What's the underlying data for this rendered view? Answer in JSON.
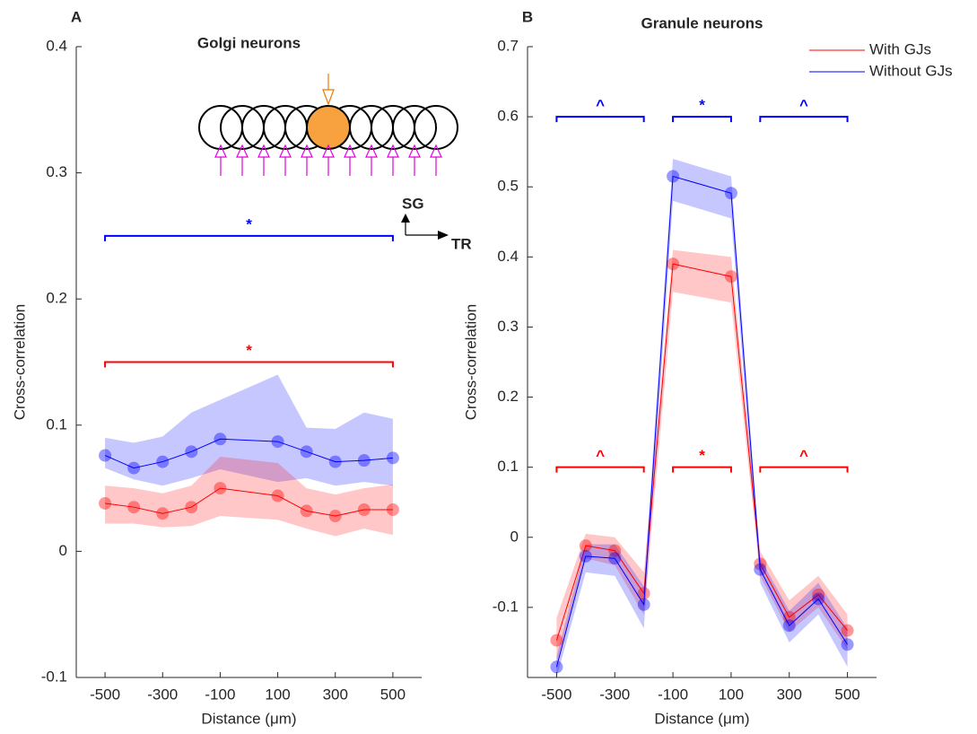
{
  "chart_data": [
    {
      "type": "line",
      "panel": "A",
      "title": "Golgi neurons",
      "xlabel": "Distance (μm)",
      "ylabel": "Cross-correlation",
      "x": [
        -500,
        -400,
        -300,
        -200,
        -100,
        100,
        200,
        300,
        400,
        500
      ],
      "xlim": [
        -600,
        600
      ],
      "xticks": [
        -500,
        -300,
        -100,
        100,
        300,
        500
      ],
      "ylim": [
        -0.1,
        0.4
      ],
      "yticks": [
        -0.1,
        0,
        0.1,
        0.2,
        0.3,
        0.4
      ],
      "series": [
        {
          "color": "#0000ff",
          "values": [
            0.076,
            0.066,
            0.071,
            0.079,
            0.089,
            0.087,
            0.079,
            0.071,
            0.072,
            0.074
          ],
          "lower": [
            0.066,
            0.057,
            0.052,
            0.058,
            0.065,
            0.055,
            0.058,
            0.052,
            0.055,
            0.052
          ],
          "upper": [
            0.09,
            0.086,
            0.091,
            0.11,
            0.12,
            0.14,
            0.098,
            0.097,
            0.11,
            0.105
          ]
        },
        {
          "color": "#ff0000",
          "values": [
            0.038,
            0.035,
            0.03,
            0.035,
            0.05,
            0.044,
            0.032,
            0.028,
            0.033,
            0.033
          ],
          "lower": [
            0.022,
            0.022,
            0.019,
            0.02,
            0.028,
            0.025,
            0.018,
            0.012,
            0.018,
            0.013
          ],
          "upper": [
            0.052,
            0.05,
            0.046,
            0.052,
            0.075,
            0.07,
            0.05,
            0.045,
            0.05,
            0.053
          ]
        }
      ],
      "significance": [
        {
          "y": 0.25,
          "x": [
            -500,
            500
          ],
          "label": "*",
          "color": "#0000ff"
        },
        {
          "y": 0.15,
          "x": [
            -500,
            500
          ],
          "label": "*",
          "color": "#ff0000"
        }
      ],
      "inset_labels": [
        "SG",
        "TR"
      ]
    },
    {
      "type": "line",
      "panel": "B",
      "title": "Granule neurons",
      "xlabel": "Distance (μm)",
      "ylabel": "Cross-correlation",
      "x": [
        -500,
        -400,
        -300,
        -200,
        -100,
        100,
        200,
        300,
        400,
        500
      ],
      "xlim": [
        -600,
        600
      ],
      "xticks": [
        -500,
        -300,
        -100,
        100,
        300,
        500
      ],
      "ylim": [
        -0.2,
        0.7
      ],
      "yticks": [
        -0.1,
        0,
        0.1,
        0.2,
        0.3,
        0.4,
        0.5,
        0.6,
        0.7
      ],
      "legend": "upper right",
      "series": [
        {
          "name": "With GJs",
          "color": "#ff0000",
          "values": [
            -0.147,
            -0.012,
            -0.019,
            -0.08,
            0.39,
            0.372,
            -0.038,
            -0.114,
            -0.082,
            -0.133
          ],
          "lower": [
            -0.18,
            -0.03,
            -0.04,
            -0.11,
            0.35,
            0.335,
            -0.055,
            -0.135,
            -0.1,
            -0.16
          ],
          "upper": [
            -0.115,
            0.005,
            0.0,
            -0.05,
            0.41,
            0.4,
            -0.02,
            -0.09,
            -0.055,
            -0.11
          ]
        },
        {
          "name": "Without GJs",
          "color": "#0000ff",
          "values": [
            -0.185,
            -0.027,
            -0.03,
            -0.096,
            0.515,
            0.491,
            -0.046,
            -0.126,
            -0.088,
            -0.153
          ],
          "lower": [
            -0.2,
            -0.05,
            -0.055,
            -0.13,
            0.48,
            0.455,
            -0.065,
            -0.15,
            -0.11,
            -0.185
          ],
          "upper": [
            -0.17,
            -0.01,
            -0.01,
            -0.07,
            0.54,
            0.515,
            -0.03,
            -0.105,
            -0.065,
            -0.13
          ]
        }
      ],
      "significance": [
        {
          "y": 0.6,
          "x": [
            -500,
            -200
          ],
          "label": "^",
          "color": "#0000ff"
        },
        {
          "y": 0.6,
          "x": [
            -100,
            100
          ],
          "label": "*",
          "color": "#0000ff"
        },
        {
          "y": 0.6,
          "x": [
            200,
            500
          ],
          "label": "^",
          "color": "#0000ff"
        },
        {
          "y": 0.1,
          "x": [
            -500,
            -200
          ],
          "label": "^",
          "color": "#ff0000"
        },
        {
          "y": 0.1,
          "x": [
            -100,
            100
          ],
          "label": "*",
          "color": "#ff0000"
        },
        {
          "y": 0.1,
          "x": [
            200,
            500
          ],
          "label": "^",
          "color": "#ff0000"
        }
      ]
    }
  ]
}
